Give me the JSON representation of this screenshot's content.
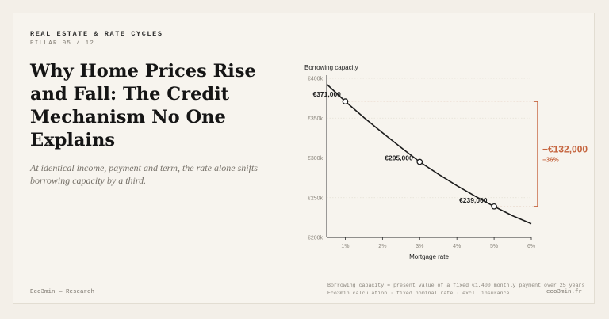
{
  "header": {
    "kicker": "REAL ESTATE & RATE CYCLES",
    "pillar": "PILLAR 05 / 12"
  },
  "title": "Why Home Prices Rise and Fall: The Credit Mechanism No One Explains",
  "subtitle": "At identical income, payment and term, the rate alone shifts borrowing capacity by a third.",
  "footer": {
    "brand": "Eco3min — Research",
    "note1": "Borrowing capacity = present value of a fixed €1,400 monthly payment over 25 years",
    "note2": "Eco3min calculation · fixed nominal rate · excl. insurance",
    "site": "eco3min.fr"
  },
  "colors": {
    "background": "#f7f4ee",
    "line": "#1c1c1c",
    "accent": "#c5643e"
  },
  "chart_data": {
    "type": "line",
    "ylabel": "Borrowing capacity",
    "xlabel": "Mortgage rate",
    "xlim": [
      0.5,
      6.0
    ],
    "ylim": [
      200000,
      400000
    ],
    "x_ticks": [
      1,
      2,
      3,
      4,
      5,
      6
    ],
    "x_tick_labels": [
      "1%",
      "2%",
      "3%",
      "4%",
      "5%",
      "6%"
    ],
    "y_ticks": [
      200000,
      250000,
      300000,
      350000,
      400000
    ],
    "y_tick_labels": [
      "€200k",
      "€250k",
      "€300k",
      "€350k",
      "€400k"
    ],
    "series": [
      {
        "x": [
          0.5,
          1,
          1.5,
          2,
          2.5,
          3,
          3.5,
          4,
          4.5,
          5,
          5.5,
          6
        ],
        "y": [
          392600,
          371000,
          350700,
          331600,
          313000,
          295000,
          279700,
          265100,
          251600,
          239000,
          227300,
          217300
        ]
      }
    ],
    "highlighted_points": [
      {
        "x": 1,
        "y": 371000,
        "label": "€371,000"
      },
      {
        "x": 3,
        "y": 295000,
        "label": "€295,000"
      },
      {
        "x": 5,
        "y": 239000,
        "label": "€239,000"
      }
    ],
    "annotation": {
      "from": 371000,
      "to": 239000,
      "label": "−€132,000",
      "sublabel": "−36%"
    },
    "grid": true
  }
}
